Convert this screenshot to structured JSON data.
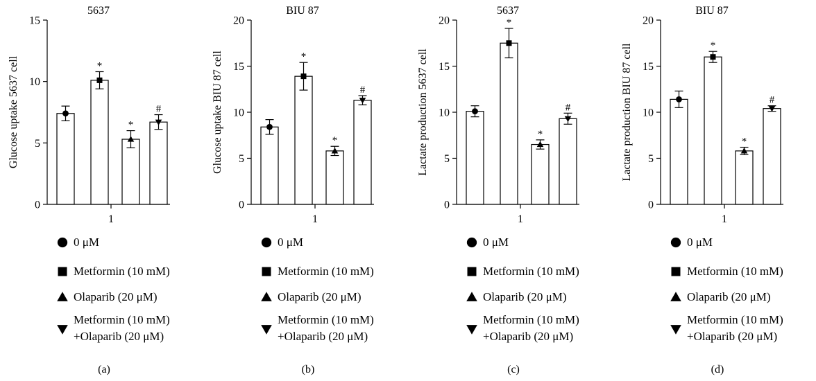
{
  "legend": {
    "items": [
      {
        "marker": "circle",
        "label": "0 μM"
      },
      {
        "marker": "square",
        "label": "Metformin (10 mM)"
      },
      {
        "marker": "triangle-up",
        "label": "Olaparib (20 μM)"
      },
      {
        "marker": "triangle-down",
        "label_line1": "Metformin (10 mM)",
        "label_line2": "+Olaparib (20 μM)"
      }
    ]
  },
  "chart_data": [
    {
      "type": "bar",
      "title": "5637",
      "ylabel": "Glucose uptake 5637 cell",
      "xlabel": "",
      "x_tick_label": "1",
      "panel_label": "(a)",
      "ylim": [
        0,
        15
      ],
      "yticks": [
        0,
        5,
        10,
        15
      ],
      "bars": [
        {
          "series": "0 μM",
          "marker": "circle",
          "value": 7.4,
          "error": 0.6,
          "annotation": ""
        },
        {
          "series": "Metformin (10 mM)",
          "marker": "square",
          "value": 10.1,
          "error": 0.7,
          "annotation": "*"
        },
        {
          "series": "Olaparib (20 μM)",
          "marker": "triangle-up",
          "value": 5.3,
          "error": 0.7,
          "annotation": "*"
        },
        {
          "series": "Metformin (10 mM)+Olaparib (20 μM)",
          "marker": "triangle-down",
          "value": 6.7,
          "error": 0.6,
          "annotation": "#"
        }
      ]
    },
    {
      "type": "bar",
      "title": "BIU 87",
      "ylabel": "Glucose uptake BIU 87 cell",
      "xlabel": "",
      "x_tick_label": "1",
      "panel_label": "(b)",
      "ylim": [
        0,
        20
      ],
      "yticks": [
        0,
        5,
        10,
        15,
        20
      ],
      "bars": [
        {
          "series": "0 μM",
          "marker": "circle",
          "value": 8.4,
          "error": 0.8,
          "annotation": ""
        },
        {
          "series": "Metformin (10 mM)",
          "marker": "square",
          "value": 13.9,
          "error": 1.5,
          "annotation": "*"
        },
        {
          "series": "Olaparib (20 μM)",
          "marker": "triangle-up",
          "value": 5.8,
          "error": 0.5,
          "annotation": "*"
        },
        {
          "series": "Metformin (10 mM)+Olaparib (20 μM)",
          "marker": "triangle-down",
          "value": 11.3,
          "error": 0.5,
          "annotation": "#"
        }
      ]
    },
    {
      "type": "bar",
      "title": "5637",
      "ylabel": "Lactate production 5637 cell",
      "xlabel": "",
      "x_tick_label": "1",
      "panel_label": "(c)",
      "ylim": [
        0,
        20
      ],
      "yticks": [
        0,
        5,
        10,
        15,
        20
      ],
      "bars": [
        {
          "series": "0 μM",
          "marker": "circle",
          "value": 10.1,
          "error": 0.6,
          "annotation": ""
        },
        {
          "series": "Metformin (10 mM)",
          "marker": "square",
          "value": 17.5,
          "error": 1.6,
          "annotation": "*"
        },
        {
          "series": "Olaparib (20 μM)",
          "marker": "triangle-up",
          "value": 6.5,
          "error": 0.5,
          "annotation": "*"
        },
        {
          "series": "Metformin (10 mM)+Olaparib (20 μM)",
          "marker": "triangle-down",
          "value": 9.3,
          "error": 0.6,
          "annotation": "#"
        }
      ]
    },
    {
      "type": "bar",
      "title": "BIU 87",
      "ylabel": "Lactate production BIU 87 cell",
      "xlabel": "",
      "x_tick_label": "1",
      "panel_label": "(d)",
      "ylim": [
        0,
        20
      ],
      "yticks": [
        0,
        5,
        10,
        15,
        20
      ],
      "bars": [
        {
          "series": "0 μM",
          "marker": "circle",
          "value": 11.4,
          "error": 0.9,
          "annotation": ""
        },
        {
          "series": "Metformin (10 mM)",
          "marker": "square",
          "value": 16.0,
          "error": 0.6,
          "annotation": "*"
        },
        {
          "series": "Olaparib (20 μM)",
          "marker": "triangle-up",
          "value": 5.8,
          "error": 0.4,
          "annotation": "*"
        },
        {
          "series": "Metformin (10 mM)+Olaparib (20 μM)",
          "marker": "triangle-down",
          "value": 10.4,
          "error": 0.3,
          "annotation": "#"
        }
      ]
    }
  ]
}
